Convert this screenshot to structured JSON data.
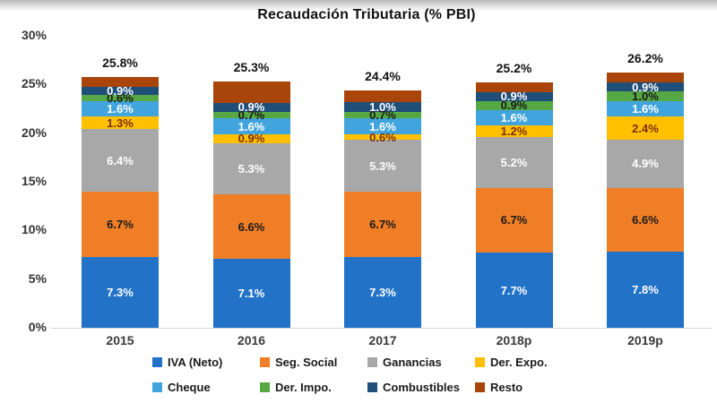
{
  "title": "Recaudación Tributaria (% PBI)",
  "chart_data": {
    "type": "bar",
    "stacked": true,
    "title": "Recaudación Tributaria (% PBI)",
    "categories": [
      "2015",
      "2016",
      "2017",
      "2018p",
      "2019p"
    ],
    "totals": [
      "25.8%",
      "25.3%",
      "24.4%",
      "25.2%",
      "26.2%"
    ],
    "y_ticks": [
      "0%",
      "5%",
      "10%",
      "15%",
      "20%",
      "25%",
      "30%"
    ],
    "ylim": [
      0,
      30
    ],
    "grid": false,
    "legend_position": "bottom",
    "series": [
      {
        "name": "IVA (Neto)",
        "color": "#2273C8",
        "label_color": "#ffffff",
        "show_labels": true,
        "values": [
          7.3,
          7.1,
          7.3,
          7.7,
          7.8
        ]
      },
      {
        "name": "Seg. Social",
        "color": "#F07E27",
        "label_color": "#1a1a1a",
        "show_labels": true,
        "values": [
          6.7,
          6.6,
          6.7,
          6.7,
          6.6
        ]
      },
      {
        "name": "Ganancias",
        "color": "#A8A8A8",
        "label_color": "#ffffff",
        "show_labels": true,
        "values": [
          6.4,
          5.3,
          5.3,
          5.2,
          4.9
        ]
      },
      {
        "name": "Der. Expo.",
        "color": "#FFC000",
        "label_color": "#7B3005",
        "show_labels": true,
        "values": [
          1.3,
          0.9,
          0.6,
          1.2,
          2.4
        ]
      },
      {
        "name": "Cheque",
        "color": "#41A4DD",
        "label_color": "#ffffff",
        "show_labels": true,
        "values": [
          1.6,
          1.6,
          1.6,
          1.6,
          1.6
        ]
      },
      {
        "name": "Der. Impo.",
        "color": "#55A843",
        "label_color": "#1a1a1a",
        "show_labels": true,
        "values": [
          0.6,
          0.7,
          0.7,
          0.9,
          1.0
        ]
      },
      {
        "name": "Combustibles",
        "color": "#1F4E79",
        "label_color": "#ffffff",
        "show_labels": true,
        "values": [
          0.9,
          0.9,
          1.0,
          0.9,
          0.9
        ]
      },
      {
        "name": "Resto",
        "color": "#A9450B",
        "label_color": "#ffffff",
        "show_labels": false,
        "values": [
          1.0,
          2.2,
          1.2,
          1.0,
          1.0
        ]
      }
    ],
    "legend_rows": [
      [
        "IVA (Neto)",
        "Seg. Social",
        "Ganancias",
        "Der. Expo."
      ],
      [
        "Cheque",
        "Der. Impo.",
        "Combustibles",
        "Resto"
      ]
    ]
  }
}
